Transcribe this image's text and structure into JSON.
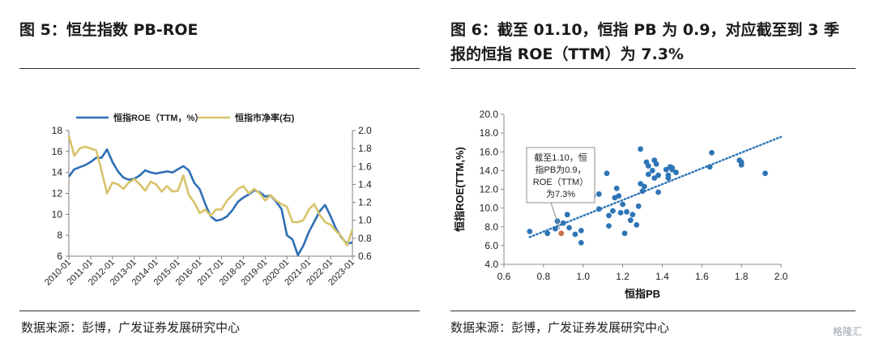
{
  "left": {
    "title": "图 5：恒生指数 PB-ROE",
    "source": "数据来源：彭博，广发证券发展研究中心"
  },
  "right": {
    "title_line1": "图 6：截至 01.10，恒指 PB 为 0.9，对应截至到 3 季",
    "title_line2": "报的恒指 ROE（TTM）为 7.3%",
    "source": "数据来源：彭博，广发证券发展研究中心"
  },
  "watermark": "格隆汇",
  "colors": {
    "roe": "#2e6fb5",
    "pb": "#d8c36a",
    "scatter": "#2e75b6",
    "highlight": "#c8734a",
    "trend": "#2e75b6"
  },
  "chart_data": [
    {
      "type": "line",
      "x_ticks": [
        "2010-01",
        "2011-01",
        "2012-01",
        "2013-01",
        "2014-01",
        "2015-01",
        "2016-01",
        "2017-01",
        "2018-01",
        "2019-01",
        "2020-01",
        "2021-01",
        "2022-01",
        "2023-01"
      ],
      "legend": [
        "恒指ROE（TTM，%）",
        "恒指市净率(右)"
      ],
      "legend_position": "top",
      "y_left": {
        "min": 6,
        "max": 18,
        "ticks": [
          "6",
          "8",
          "10",
          "12",
          "14",
          "16",
          "18"
        ]
      },
      "y_right": {
        "min": 0.6,
        "max": 2.0,
        "ticks": [
          "0.6",
          "0.8",
          "1.0",
          "1.2",
          "1.4",
          "1.6",
          "1.8",
          "2.0"
        ]
      },
      "series": [
        {
          "name": "恒指ROE（TTM，%）",
          "axis": "left",
          "x": [
            2010.0,
            2010.25,
            2010.5,
            2010.75,
            2011.0,
            2011.25,
            2011.5,
            2011.75,
            2012.0,
            2012.25,
            2012.5,
            2012.75,
            2013.0,
            2013.25,
            2013.5,
            2013.75,
            2014.0,
            2014.25,
            2014.5,
            2014.75,
            2015.0,
            2015.25,
            2015.5,
            2015.75,
            2016.0,
            2016.25,
            2016.5,
            2016.75,
            2017.0,
            2017.25,
            2017.5,
            2017.75,
            2018.0,
            2018.25,
            2018.5,
            2018.75,
            2019.0,
            2019.25,
            2019.5,
            2019.75,
            2020.0,
            2020.25,
            2020.5,
            2020.75,
            2021.0,
            2021.25,
            2021.5,
            2021.75,
            2022.0,
            2022.25,
            2022.5,
            2022.75,
            2023.0
          ],
          "values": [
            13.6,
            14.3,
            14.5,
            14.7,
            15.0,
            15.4,
            15.4,
            16.2,
            15.0,
            14.1,
            13.5,
            13.3,
            13.4,
            13.7,
            14.2,
            14.0,
            13.9,
            14.0,
            14.1,
            14.0,
            14.3,
            14.6,
            14.2,
            13.0,
            12.4,
            11.0,
            9.8,
            9.4,
            9.5,
            9.8,
            10.4,
            11.2,
            11.6,
            11.9,
            12.3,
            12.1,
            11.7,
            11.8,
            11.2,
            10.5,
            8.0,
            7.6,
            6.1,
            7.0,
            8.3,
            9.3,
            10.3,
            10.9,
            9.8,
            8.6,
            7.8,
            7.2,
            7.3
          ]
        },
        {
          "name": "恒指市净率(右)",
          "axis": "right",
          "x": [
            2010.0,
            2010.25,
            2010.5,
            2010.75,
            2011.0,
            2011.25,
            2011.5,
            2011.75,
            2012.0,
            2012.25,
            2012.5,
            2012.75,
            2013.0,
            2013.25,
            2013.5,
            2013.75,
            2014.0,
            2014.25,
            2014.5,
            2014.75,
            2015.0,
            2015.25,
            2015.5,
            2015.75,
            2016.0,
            2016.25,
            2016.5,
            2016.75,
            2017.0,
            2017.25,
            2017.5,
            2017.75,
            2018.0,
            2018.25,
            2018.5,
            2018.75,
            2019.0,
            2019.25,
            2019.5,
            2019.75,
            2020.0,
            2020.25,
            2020.5,
            2020.75,
            2021.0,
            2021.25,
            2021.5,
            2021.75,
            2022.0,
            2022.25,
            2022.5,
            2022.75,
            2023.0
          ],
          "values": [
            1.94,
            1.72,
            1.8,
            1.82,
            1.8,
            1.78,
            1.55,
            1.3,
            1.42,
            1.4,
            1.35,
            1.42,
            1.46,
            1.4,
            1.33,
            1.43,
            1.4,
            1.32,
            1.38,
            1.32,
            1.33,
            1.5,
            1.28,
            1.2,
            1.08,
            1.12,
            1.05,
            1.12,
            1.12,
            1.22,
            1.28,
            1.35,
            1.38,
            1.3,
            1.35,
            1.3,
            1.22,
            1.28,
            1.22,
            1.18,
            1.15,
            0.98,
            0.98,
            1.0,
            1.12,
            1.18,
            1.06,
            0.98,
            0.95,
            0.88,
            0.82,
            0.72,
            0.9
          ]
        }
      ]
    },
    {
      "type": "scatter",
      "xlabel": "恒指PB",
      "ylabel": "恒指ROE(TTM,%)",
      "xlim": [
        0.6,
        2.0
      ],
      "ylim": [
        4.0,
        20.0
      ],
      "x_ticks": [
        "0.6",
        "0.8",
        "1.0",
        "1.2",
        "1.4",
        "1.6",
        "1.8",
        "2.0"
      ],
      "y_ticks": [
        "4.0",
        "6.0",
        "8.0",
        "10.0",
        "12.0",
        "14.0",
        "16.0",
        "18.0",
        "20.0"
      ],
      "points": [
        [
          0.73,
          7.5
        ],
        [
          0.82,
          7.3
        ],
        [
          0.86,
          7.8
        ],
        [
          0.87,
          8.6
        ],
        [
          0.9,
          8.4
        ],
        [
          0.92,
          9.3
        ],
        [
          0.93,
          7.9
        ],
        [
          0.96,
          7.2
        ],
        [
          0.99,
          6.3
        ],
        [
          0.99,
          7.6
        ],
        [
          1.03,
          10.9
        ],
        [
          1.05,
          11.3
        ],
        [
          1.08,
          11.5
        ],
        [
          1.08,
          9.9
        ],
        [
          1.12,
          13.7
        ],
        [
          1.13,
          9.2
        ],
        [
          1.13,
          8.1
        ],
        [
          1.15,
          9.7
        ],
        [
          1.16,
          11.1
        ],
        [
          1.17,
          12.1
        ],
        [
          1.18,
          11.3
        ],
        [
          1.19,
          9.5
        ],
        [
          1.2,
          10.4
        ],
        [
          1.21,
          7.3
        ],
        [
          1.22,
          9.6
        ],
        [
          1.24,
          8.7
        ],
        [
          1.25,
          9.3
        ],
        [
          1.27,
          8.2
        ],
        [
          1.28,
          10.2
        ],
        [
          1.29,
          16.3
        ],
        [
          1.29,
          12.6
        ],
        [
          1.3,
          11.8
        ],
        [
          1.31,
          12.3
        ],
        [
          1.32,
          14.9
        ],
        [
          1.33,
          14.5
        ],
        [
          1.33,
          13.6
        ],
        [
          1.35,
          14.0
        ],
        [
          1.36,
          15.1
        ],
        [
          1.36,
          13.2
        ],
        [
          1.37,
          14.7
        ],
        [
          1.38,
          13.5
        ],
        [
          1.38,
          11.7
        ],
        [
          1.42,
          14.1
        ],
        [
          1.43,
          13.5
        ],
        [
          1.43,
          13.2
        ],
        [
          1.44,
          14.4
        ],
        [
          1.45,
          14.1
        ],
        [
          1.45,
          14.3
        ],
        [
          1.47,
          13.8
        ],
        [
          1.64,
          14.4
        ],
        [
          1.65,
          15.9
        ],
        [
          1.79,
          15.1
        ],
        [
          1.8,
          14.6
        ],
        [
          1.8,
          14.9
        ],
        [
          1.92,
          13.7
        ]
      ],
      "highlight": {
        "x": 0.89,
        "y": 7.3,
        "label_lines": [
          "截至1.10，恒",
          "指PB为0.9，",
          "ROE（TTM）",
          "为7.3%"
        ]
      },
      "trendline": {
        "style": "dotted",
        "x": [
          0.73,
          2.0
        ],
        "y": [
          6.9,
          17.6
        ]
      }
    }
  ]
}
